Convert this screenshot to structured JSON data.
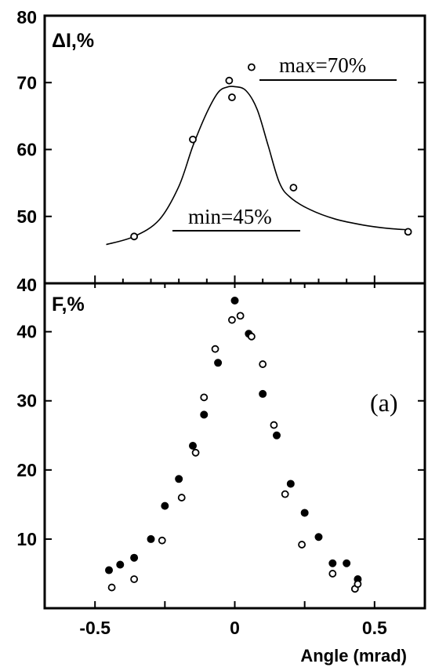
{
  "chart_data": [
    {
      "type": "line",
      "panel": "top",
      "ylabel": "ΔI,%",
      "ylim": [
        40,
        80
      ],
      "xlim": [
        -0.68,
        0.68
      ],
      "yticks": [
        40,
        50,
        60,
        70,
        80
      ],
      "grid": false,
      "series": [
        {
          "marker": "open-circle",
          "x": [
            -0.36,
            -0.15,
            -0.02,
            -0.01,
            0.06,
            0.21,
            0.62
          ],
          "y": [
            47.0,
            61.5,
            70.3,
            67.8,
            72.3,
            54.3,
            47.7
          ]
        },
        {
          "style": "smooth-fit-line",
          "x": [
            -0.46,
            -0.36,
            -0.27,
            -0.2,
            -0.15,
            -0.1,
            -0.06,
            -0.03,
            0.0,
            0.04,
            0.08,
            0.12,
            0.16,
            0.2,
            0.27,
            0.36,
            0.46,
            0.55,
            0.62
          ],
          "y": [
            45.8,
            47.0,
            49.5,
            54.5,
            60.5,
            65.5,
            68.5,
            69.3,
            69.4,
            68.8,
            66.0,
            60.5,
            55.0,
            52.8,
            51.0,
            49.6,
            48.7,
            48.2,
            48.0
          ]
        }
      ],
      "annotations": [
        {
          "text": "max=70%"
        },
        {
          "text": "min=45%"
        }
      ]
    },
    {
      "type": "scatter",
      "panel": "bottom",
      "ylabel": "F,%",
      "xlabel": "Angle (mrad)",
      "xlim": [
        -0.68,
        0.68
      ],
      "ylim": [
        0,
        47
      ],
      "xticks": [
        -0.5,
        0,
        0.5
      ],
      "yticks": [
        10,
        20,
        30,
        40
      ],
      "grid": false,
      "panel_label": "(a)",
      "series": [
        {
          "marker": "filled-circle",
          "x": [
            -0.45,
            -0.41,
            -0.36,
            -0.3,
            -0.25,
            -0.2,
            -0.15,
            -0.11,
            -0.06,
            0.0,
            0.05,
            0.1,
            0.15,
            0.2,
            0.25,
            0.3,
            0.35,
            0.4,
            0.44
          ],
          "y": [
            5.5,
            6.3,
            7.3,
            10.0,
            14.8,
            18.7,
            23.5,
            28.0,
            35.5,
            44.5,
            39.7,
            31.0,
            25.0,
            18.0,
            13.8,
            10.3,
            6.5,
            6.5,
            4.2
          ]
        },
        {
          "marker": "open-circle",
          "x": [
            -0.44,
            -0.36,
            -0.26,
            -0.19,
            -0.14,
            -0.11,
            -0.07,
            -0.01,
            0.02,
            0.06,
            0.1,
            0.14,
            0.18,
            0.24,
            0.35,
            0.43,
            0.44
          ],
          "y": [
            3.0,
            4.2,
            9.8,
            16.0,
            22.5,
            30.5,
            37.5,
            41.7,
            42.3,
            39.3,
            35.3,
            26.5,
            16.5,
            9.2,
            5.0,
            2.8,
            3.5
          ]
        }
      ]
    }
  ]
}
